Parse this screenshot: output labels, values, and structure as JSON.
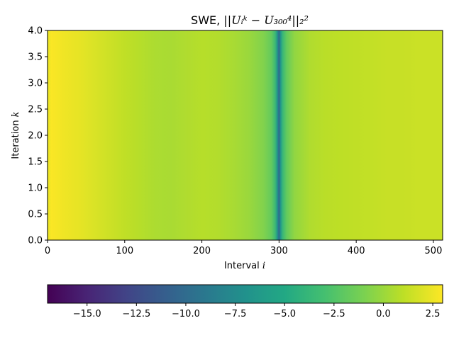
{
  "chart_data": {
    "type": "heatmap",
    "title": "SWE, ",
    "title_math": "||Uᵢᵏ − U₃₀₀⁴||₂²",
    "xlabel": "Interval ",
    "xlabel_var": "i",
    "ylabel": "Iteration ",
    "ylabel_var": "k",
    "xlim": [
      0,
      512
    ],
    "ylim": [
      0,
      4
    ],
    "xticks": [
      {
        "value": 0,
        "label": "0"
      },
      {
        "value": 100,
        "label": "100"
      },
      {
        "value": 200,
        "label": "200"
      },
      {
        "value": 300,
        "label": "300"
      },
      {
        "value": 400,
        "label": "400"
      },
      {
        "value": 500,
        "label": "500"
      }
    ],
    "yticks": [
      {
        "value": 0.0,
        "label": "0.0"
      },
      {
        "value": 0.5,
        "label": "0.5"
      },
      {
        "value": 1.0,
        "label": "1.0"
      },
      {
        "value": 1.5,
        "label": "1.5"
      },
      {
        "value": 2.0,
        "label": "2.0"
      },
      {
        "value": 2.5,
        "label": "2.5"
      },
      {
        "value": 3.0,
        "label": "3.0"
      },
      {
        "value": 3.5,
        "label": "3.5"
      },
      {
        "value": 4.0,
        "label": "4.0"
      }
    ],
    "colormap": "viridis",
    "colorbar": {
      "orientation": "horizontal",
      "placement": "bottom",
      "range": [
        -17,
        3
      ],
      "ticks": [
        {
          "value": -15.0,
          "label": "−15.0"
        },
        {
          "value": -12.5,
          "label": "−12.5"
        },
        {
          "value": -10.0,
          "label": "−10.0"
        },
        {
          "value": -7.5,
          "label": "−7.5"
        },
        {
          "value": -5.0,
          "label": "−5.0"
        },
        {
          "value": -2.5,
          "label": "−2.5"
        },
        {
          "value": 0.0,
          "label": "0.0"
        },
        {
          "value": 2.5,
          "label": "2.5"
        }
      ]
    },
    "column_profile": {
      "note_axis": "value as a function of interval i (constant across iterations k)",
      "i": [
        0,
        5,
        10,
        20,
        40,
        60,
        80,
        100,
        120,
        140,
        160,
        180,
        200,
        220,
        240,
        260,
        280,
        290,
        295,
        298,
        300,
        302,
        305,
        310,
        320,
        340,
        360,
        380,
        400,
        420,
        440,
        460,
        480,
        500,
        512
      ],
      "value": [
        2.3,
        2.9,
        2.8,
        2.6,
        2.3,
        1.9,
        1.5,
        1.1,
        0.8,
        0.5,
        0.4,
        0.6,
        0.8,
        0.7,
        0.4,
        0.0,
        -0.8,
        -1.8,
        -3.5,
        -7.0,
        -10.5,
        -6.5,
        -3.5,
        -1.8,
        -0.3,
        0.6,
        0.9,
        1.0,
        1.1,
        1.2,
        1.3,
        1.3,
        1.4,
        1.4,
        1.4
      ]
    }
  }
}
